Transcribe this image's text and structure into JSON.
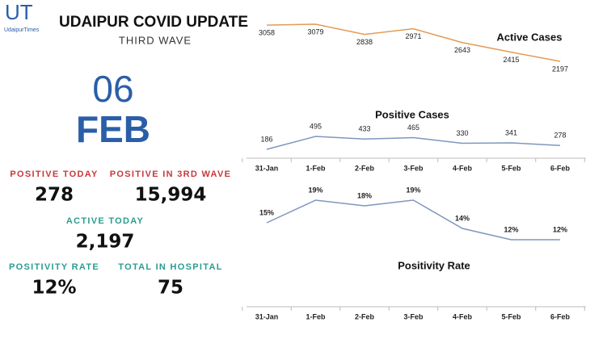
{
  "logo": {
    "letters": "UT",
    "name": "UdaipurTimes"
  },
  "header": {
    "title": "UDAIPUR COVID UPDATE",
    "subtitle": "THIRD WAVE"
  },
  "date": {
    "day": "06",
    "month": "FEB"
  },
  "stats": [
    {
      "label": "POSITIVE TODAY",
      "value": "278"
    },
    {
      "label": "POSITIVE IN 3RD WAVE",
      "value": "15,994"
    },
    {
      "label": "ACTIVE TODAY",
      "value": "2,197"
    },
    {
      "label": "POSITIVITY RATE",
      "value": "12%"
    },
    {
      "label": "TOTAL IN HOSPITAL",
      "value": "75"
    }
  ],
  "chart_data": [
    {
      "type": "line",
      "title": "Active Cases",
      "color": "#e39b55",
      "values": [
        3058,
        3079,
        2838,
        2971,
        2643,
        2415,
        2197
      ]
    },
    {
      "type": "line",
      "title": "Positive Cases",
      "color": "#7f96bf",
      "categories": [
        "31-Jan",
        "1-Feb",
        "2-Feb",
        "3-Feb",
        "4-Feb",
        "5-Feb",
        "6-Feb"
      ],
      "values": [
        186,
        495,
        433,
        465,
        330,
        341,
        278
      ]
    },
    {
      "type": "line",
      "title": "Positivity Rate",
      "color": "#7f96bf",
      "categories": [
        "31-Jan",
        "1-Feb",
        "2-Feb",
        "3-Feb",
        "4-Feb",
        "5-Feb",
        "6-Feb"
      ],
      "values": [
        15,
        19,
        18,
        19,
        14,
        12,
        12
      ],
      "value_labels": [
        "15%",
        "19%",
        "18%",
        "19%",
        "14%",
        "12%",
        "12%"
      ]
    }
  ]
}
